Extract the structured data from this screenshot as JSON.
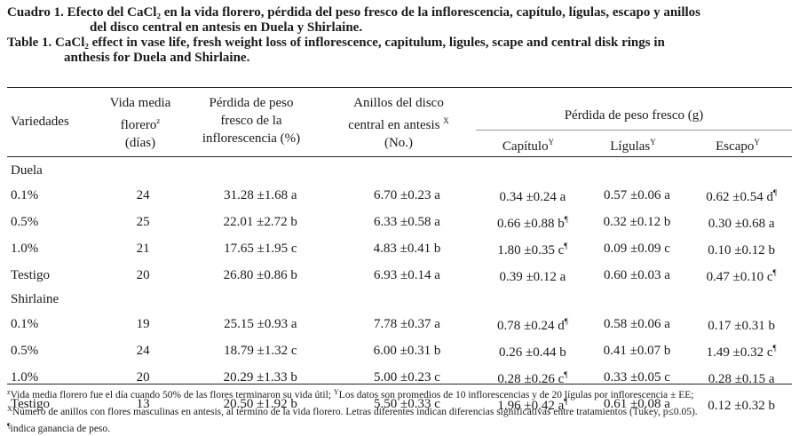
{
  "caption": {
    "es_line1": "Cuadro 1. Efecto del CaCl₂ en la vida florero, pérdida del peso fresco de la inflorescencia, capítulo, lígulas, escapo y anillos",
    "es_line2": "del disco central en antesis en Duela y Shirlaine.",
    "en_line1": "Table 1. CaCl₂ effect in vase life, fresh weight loss of inflorescence, capitulum, ligules, scape and central disk rings in",
    "en_line2": "anthesis for Duela and Shirlaine."
  },
  "header": {
    "variedades": "Variedades",
    "vida_l1": "Vida media",
    "vida_l2": "florero",
    "vida_mark": "z",
    "vida_l3": "(días)",
    "perdida_l1": "Pérdida de peso",
    "perdida_l2": "fresco de la",
    "perdida_l3": "inflorescencia (%)",
    "anillos_l1": "Anillos del disco",
    "anillos_l2": "central en antesis",
    "anillos_mark": "X",
    "anillos_l3": "(No.)",
    "peso_group": "Pérdida de peso fresco (g)",
    "capitulo": "Capítulo",
    "capitulo_mark": "Y",
    "ligulas": "Lígulas",
    "ligulas_mark": "Y",
    "escapo": "Escapo",
    "escapo_mark": "Y"
  },
  "groups": [
    {
      "name": "Duela",
      "rows": [
        {
          "var": "0.1%",
          "vida": "24",
          "perdida": "31.28 ±1.68 a",
          "anillos": "6.70 ±0.23 a",
          "capitulo": "0.34 ±0.24 a",
          "capitulo_mark": "",
          "ligulas": "0.57 ±0.06 a",
          "escapo": "0.62 ±0.54 d",
          "escapo_mark": "¶"
        },
        {
          "var": "0.5%",
          "vida": "25",
          "perdida": "22.01 ±2.72 b",
          "anillos": "6.33 ±0.58 a",
          "capitulo": "0.66 ±0.88 b",
          "capitulo_mark": "¶",
          "ligulas": "0.32 ±0.12 b",
          "escapo": "0.30 ±0.68 a",
          "escapo_mark": ""
        },
        {
          "var": "1.0%",
          "vida": "21",
          "perdida": "17.65 ±1.95 c",
          "anillos": "4.83 ±0.41 b",
          "capitulo": "1.80 ±0.35 c",
          "capitulo_mark": "¶",
          "ligulas": "0.09 ±0.09 c",
          "escapo": "0.10 ±0.12 b",
          "escapo_mark": ""
        },
        {
          "var": "Testigo",
          "vida": "20",
          "perdida": "26.80 ±0.86 b",
          "anillos": "6.93 ±0.14 a",
          "capitulo": "0.39 ±0.12 a",
          "capitulo_mark": "",
          "ligulas": "0.60 ±0.03 a",
          "escapo": "0.47 ±0.10 c",
          "escapo_mark": "¶"
        }
      ]
    },
    {
      "name": "Shirlaine",
      "rows": [
        {
          "var": "0.1%",
          "vida": "19",
          "perdida": "25.15 ±0.93 a",
          "anillos": "7.78 ±0.37 a",
          "capitulo": "0.78 ±0.24 d",
          "capitulo_mark": "¶",
          "ligulas": "0.58 ±0.06 a",
          "escapo": "0.17 ±0.31 b",
          "escapo_mark": ""
        },
        {
          "var": "0.5%",
          "vida": "24",
          "perdida": "18.79 ±1.32 c",
          "anillos": "6.00 ±0.31 b",
          "capitulo": "0.26 ±0.44 b",
          "capitulo_mark": "",
          "ligulas": "0.41 ±0.07 b",
          "escapo": "1.49 ±0.32 c",
          "escapo_mark": "¶"
        },
        {
          "var": "1.0%",
          "vida": "20",
          "perdida": "20.29 ±1.33 b",
          "anillos": "5.00 ±0.23 c",
          "capitulo": "0.28 ±0.26 c",
          "capitulo_mark": "¶",
          "ligulas": "0.33 ±0.05 c",
          "escapo": "0.28 ±0.15 a",
          "escapo_mark": ""
        },
        {
          "var": "Testigo",
          "vida": "13",
          "perdida": "20.50 ±1.92 b",
          "anillos": "5.50 ±0.33 c",
          "capitulo": "1.96 ±0.42 a",
          "capitulo_mark": "¶",
          "ligulas": "0.61 ±0.08 a",
          "escapo": "0.12 ±0.32 b",
          "escapo_mark": ""
        }
      ]
    }
  ],
  "footnotes": {
    "fn1_mark": "z",
    "fn1_text_a": "Vida media florero fue el día cuando 50% de las flores terminaron su vida útil; ",
    "fn1_mark2": "Y",
    "fn1_text_b": "Los datos son promedios de 10 inflorescencias y de 20 lígulas por inflorescencia ± EE;",
    "fn2_mark": "X",
    "fn2_text": "Número de anillos con flores masculinas en antesis, al término de la vida florero. Letras diferentes indican diferencias significativas entre tratamientos (Tukey, p≤0.05).",
    "fn3_mark": "¶",
    "fn3_text": "indica ganancia de peso."
  }
}
